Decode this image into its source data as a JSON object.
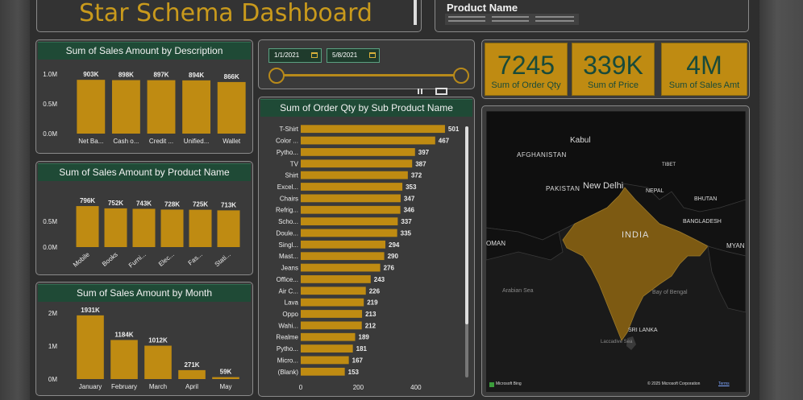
{
  "header": {
    "title": "Star Schema Dashboard",
    "slicer_title": "Product Name"
  },
  "date_filter": {
    "start": "1/1/2021",
    "end": "5/8/2021"
  },
  "kpis": [
    {
      "value": "7245",
      "label": "Sum of Order Qty"
    },
    {
      "value": "339K",
      "label": "Sum of Price"
    },
    {
      "value": "4M",
      "label": "Sum of Sales Amt"
    }
  ],
  "map": {
    "labels": [
      "AFGHANISTAN",
      "Kabul",
      "PAKISTAN",
      "New Delhi",
      "NEPAL",
      "TIBET",
      "BHUTAN",
      "BANGLADESH",
      "INDIA",
      "MYAN",
      "OMAN",
      "Arabian Sea",
      "Bay of Bengal",
      "SRI LANKA",
      "Laccadive Sea"
    ],
    "attribution_left": "Microsoft Bing",
    "attribution_right": "© 2025 Microsoft Corporation",
    "terms": "Terms"
  },
  "colors": {
    "bar": "#bf8b12",
    "title_bg": "#1f4a36",
    "panel_bg": "#3a3a3a",
    "india": "#7d5a12"
  },
  "chart_data": [
    {
      "type": "bar",
      "title": "Sum of Sales Amount by Description",
      "categories": [
        "Net Ba...",
        "Cash o...",
        "Credit ...",
        "Unified...",
        "Wallet"
      ],
      "values": [
        903000,
        898000,
        897000,
        894000,
        866000
      ],
      "data_labels": [
        "903K",
        "898K",
        "897K",
        "894K",
        "866K"
      ],
      "y_ticks": [
        "0.0M",
        "0.5M",
        "1.0M"
      ],
      "ylim": [
        0,
        1000000
      ]
    },
    {
      "type": "bar",
      "title": "Sum of Sales Amount by Product Name",
      "categories": [
        "Mobile",
        "Books",
        "Furni...",
        "Elec...",
        "Fas...",
        "Stati..."
      ],
      "values": [
        796000,
        752000,
        743000,
        728000,
        725000,
        713000
      ],
      "data_labels": [
        "796K",
        "752K",
        "743K",
        "728K",
        "725K",
        "713K"
      ],
      "y_ticks": [
        "0.0M",
        "0.5M"
      ],
      "ylim": [
        0,
        1000000
      ]
    },
    {
      "type": "bar",
      "title": "Sum of Sales Amount by Month",
      "categories": [
        "January",
        "February",
        "March",
        "April",
        "May"
      ],
      "values": [
        1931000,
        1184000,
        1012000,
        271000,
        59000
      ],
      "data_labels": [
        "1931K",
        "1184K",
        "1012K",
        "271K",
        "59K"
      ],
      "y_ticks": [
        "0M",
        "1M",
        "2M"
      ],
      "ylim": [
        0,
        2000000
      ]
    },
    {
      "type": "bar",
      "orientation": "horizontal",
      "title": "Sum of Order Qty by Sub Product Name",
      "categories": [
        "T-Shirt",
        "Color ...",
        "Pytho...",
        "TV",
        "Shirt",
        "Excel...",
        "Chairs",
        "Refrig...",
        "Scho...",
        "Doule...",
        "Singl...",
        "Mast...",
        "Jeans",
        "Office...",
        "Air C...",
        "Lava",
        "Oppo",
        "Wahi...",
        "Realme",
        "Pytho...",
        "Micro...",
        "(Blank)"
      ],
      "values": [
        501,
        467,
        397,
        387,
        372,
        353,
        347,
        346,
        337,
        335,
        294,
        290,
        276,
        243,
        226,
        219,
        213,
        212,
        189,
        181,
        167,
        153
      ],
      "x_ticks": [
        "0",
        "200",
        "400"
      ],
      "xlim": [
        0,
        560
      ]
    }
  ]
}
